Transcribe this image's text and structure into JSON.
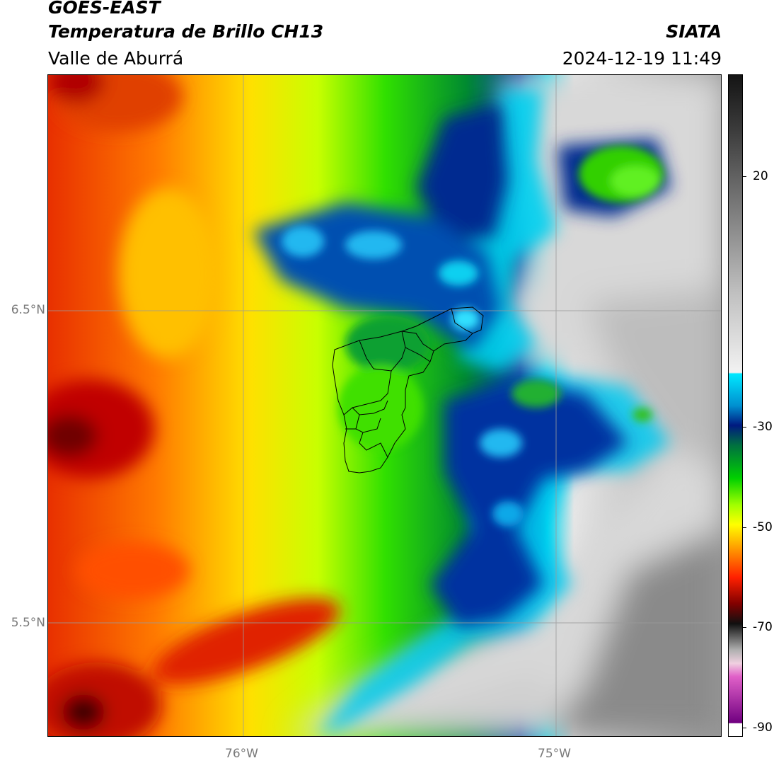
{
  "header": {
    "title_line1": "GOES-EAST",
    "title_line2": "Temperatura de Brillo CH13",
    "brand": "SIATA",
    "region": "Valle de Aburrá",
    "timestamp": "2024-12-19 11:49"
  },
  "map": {
    "lat_labels": [
      {
        "lat": 6.5,
        "label": "6.5°N"
      },
      {
        "lat": 5.5,
        "label": "5.5°N"
      }
    ],
    "lon_labels": [
      {
        "lon": -76.0,
        "label": "76°W"
      },
      {
        "lon": -75.0,
        "label": "75°W"
      }
    ],
    "extent": {
      "lon_min": -76.62,
      "lon_max": -74.47,
      "lat_min": 5.14,
      "lat_max": 7.25
    },
    "grid_color": "#9a9a9a",
    "boundary_color": "#000000"
  },
  "colorbar": {
    "range": [
      -90,
      40
    ],
    "ticks": [
      {
        "value": 20,
        "label": "20"
      },
      {
        "value": -30,
        "label": "-30"
      },
      {
        "value": -50,
        "label": "-50"
      },
      {
        "value": -70,
        "label": "-70"
      },
      {
        "value": -90,
        "label": "-90"
      }
    ],
    "colors": {
      "warm_gray_dark": "#2a2a2a",
      "warm_gray_light": "#efefef",
      "cyan": "#00e5ff",
      "navy": "#001a80",
      "green": "#00c800",
      "lime": "#7fff00",
      "yellow": "#ffff00",
      "orange": "#ff8c00",
      "red": "#e00000",
      "maroon": "#550000",
      "magenta": "#e060c8",
      "purple": "#700080"
    }
  }
}
